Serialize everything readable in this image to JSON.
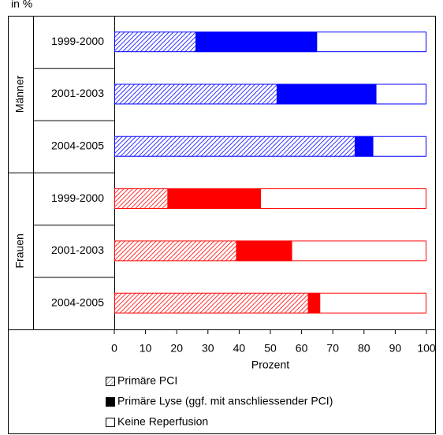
{
  "chart_data": {
    "type": "stacked-barh",
    "unit_label": "in %",
    "x_label": "Prozent",
    "xlim": [
      0,
      100
    ],
    "xticks": [
      0,
      10,
      20,
      30,
      40,
      50,
      60,
      70,
      80,
      90,
      100
    ],
    "groups": [
      {
        "name": "Männer",
        "color": "#0000ff",
        "categories": [
          "1999-2000",
          "2001-2003",
          "2004-2005"
        ]
      },
      {
        "name": "Frauen",
        "color": "#ff0000",
        "categories": [
          "1999-2000",
          "2001-2003",
          "2004-2005"
        ]
      }
    ],
    "series": [
      {
        "name": "Primäre PCI",
        "style": "hatch",
        "color": "#888888",
        "values": [
          26,
          52,
          77,
          17,
          39,
          62
        ]
      },
      {
        "name": "Primäre Lyse (ggf. mit anschliessender PCI)",
        "style": "solid",
        "color": "#000000",
        "values": [
          39,
          32,
          6,
          30,
          18,
          4
        ]
      },
      {
        "name": "Keine Reperfusion",
        "style": "empty",
        "color": "#ffffff",
        "values": [
          35,
          16,
          17,
          53,
          43,
          34
        ]
      }
    ]
  }
}
